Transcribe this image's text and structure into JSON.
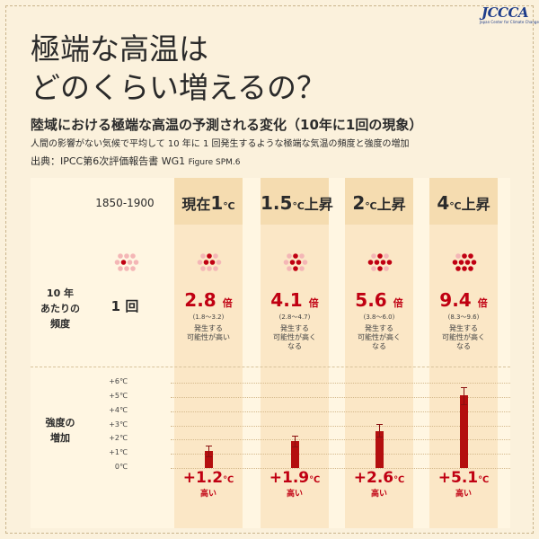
{
  "logo": {
    "text": "JCCCA",
    "sub": "Japan Center for Climate Change Actions"
  },
  "title": {
    "line1": "極端な高温は",
    "line2": "どのくらい増えるの？"
  },
  "subtitle": "陸域における極端な高温の予測される変化（10年に1回の現象）",
  "description": "人間の影響がない気候で平均して 10 年に 1 回発生するような極端な気温の頻度と強度の増加",
  "source": {
    "label": "出典：IPCC第6次評価報告書 WG1",
    "figure": "Figure SPM.6"
  },
  "row_labels": {
    "frequency": [
      "10 年",
      "あたりの",
      "頻度"
    ],
    "intensity": [
      "強度の",
      "増加"
    ]
  },
  "baseline": {
    "period": "1850-1900",
    "frequency": "1 回"
  },
  "levels": [
    {
      "pre": "現在",
      "num": "1",
      "unit": "℃",
      "post": "",
      "mult": "2.8",
      "times": "倍",
      "range": "(1.8〜3.2)",
      "likely": [
        "発生する",
        "可能性が高い"
      ],
      "inc": "+1.2",
      "inc_unit": "℃",
      "high": "高い",
      "dots_red": 3
    },
    {
      "pre": "",
      "num": "1.5",
      "unit": "℃",
      "post": "上昇",
      "mult": "4.1",
      "times": "倍",
      "range": "(2.8〜4.7)",
      "likely": [
        "発生する",
        "可能性が高く",
        "なる"
      ],
      "inc": "+1.9",
      "inc_unit": "℃",
      "high": "高い",
      "dots_red": 4
    },
    {
      "pre": "",
      "num": "2",
      "unit": "℃",
      "post": "上昇",
      "mult": "5.6",
      "times": "倍",
      "range": "(3.8〜6.0)",
      "likely": [
        "発生する",
        "可能性が高く",
        "なる"
      ],
      "inc": "+2.6",
      "inc_unit": "℃",
      "high": "高い",
      "dots_red": 6
    },
    {
      "pre": "",
      "num": "4",
      "unit": "℃",
      "post": "上昇",
      "mult": "9.4",
      "times": "倍",
      "range": "(8.3〜9.6)",
      "likely": [
        "発生する",
        "可能性が高く",
        "なる"
      ],
      "inc": "+5.1",
      "inc_unit": "℃",
      "high": "高い",
      "dots_red": 9
    }
  ],
  "chart_data": {
    "type": "bar",
    "categories": [
      "1850-1900",
      "現在1℃",
      "1.5℃上昇",
      "2℃上昇",
      "4℃上昇"
    ],
    "values": [
      0,
      1.2,
      1.9,
      2.6,
      5.1
    ],
    "error_low": [
      0,
      0.8,
      1.5,
      2.2,
      4.5
    ],
    "error_high": [
      0,
      1.6,
      2.3,
      3.1,
      5.7
    ],
    "y_ticks": [
      "0℃",
      "+1℃",
      "+2℃",
      "+3℃",
      "+4℃",
      "+5℃",
      "+6℃"
    ],
    "ylim": [
      0,
      6
    ],
    "bar_color": "#b40f0f",
    "frequency_multipliers": [
      1,
      2.8,
      4.1,
      5.6,
      9.4
    ]
  },
  "colors": {
    "accent": "#c00012",
    "bar": "#b40f0f",
    "dot_light": "#f4b6b6",
    "dot_dark": "#c00012"
  }
}
